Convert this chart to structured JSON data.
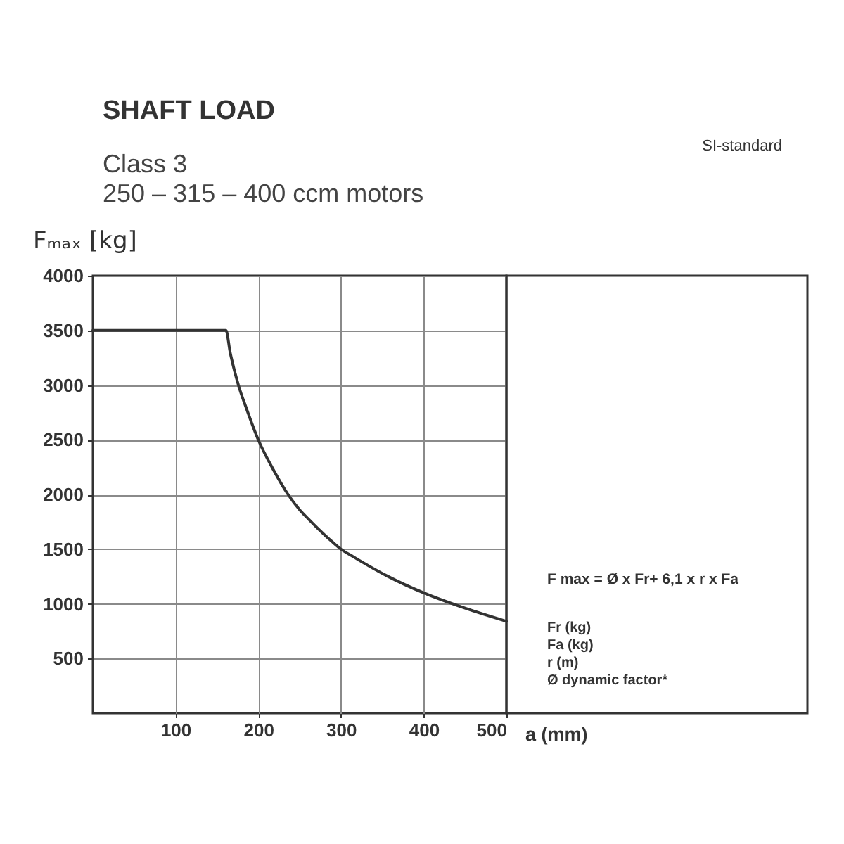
{
  "chart_data": {
    "type": "line",
    "title": "SHAFT LOAD",
    "subtitle": "Class 3\n250 – 315 – 400 ccm motors",
    "xlabel": "a (mm)",
    "ylabel": "Fₘₐₓ [kg]",
    "x": [
      0,
      161,
      166,
      176,
      186,
      200,
      218,
      236,
      250,
      260,
      289,
      300,
      315,
      357,
      400,
      450,
      500
    ],
    "series": [
      {
        "color": "#333333",
        "values": [
          3500,
          3500,
          3300,
          3000,
          2780,
          2500,
          2230,
          2000,
          1860,
          1780,
          1570,
          1500,
          1430,
          1250,
          1100,
          960,
          840
        ]
      }
    ],
    "xlim": [
      0,
      500
    ],
    "ylim": [
      0,
      4000
    ],
    "xticks": [
      100,
      200,
      300,
      400,
      500
    ],
    "yticks": [
      500,
      1000,
      1500,
      2000,
      2500,
      3000,
      3500,
      4000
    ],
    "grid": true,
    "marker": "none",
    "line_style": "solid",
    "annotations": [
      "SI-standard",
      "F max = Ø x Fr+ 6,1 x r x Fa",
      "Fr (kg)",
      "Fa (kg)",
      "r (m)",
      "Ø dynamic factor*"
    ]
  }
}
